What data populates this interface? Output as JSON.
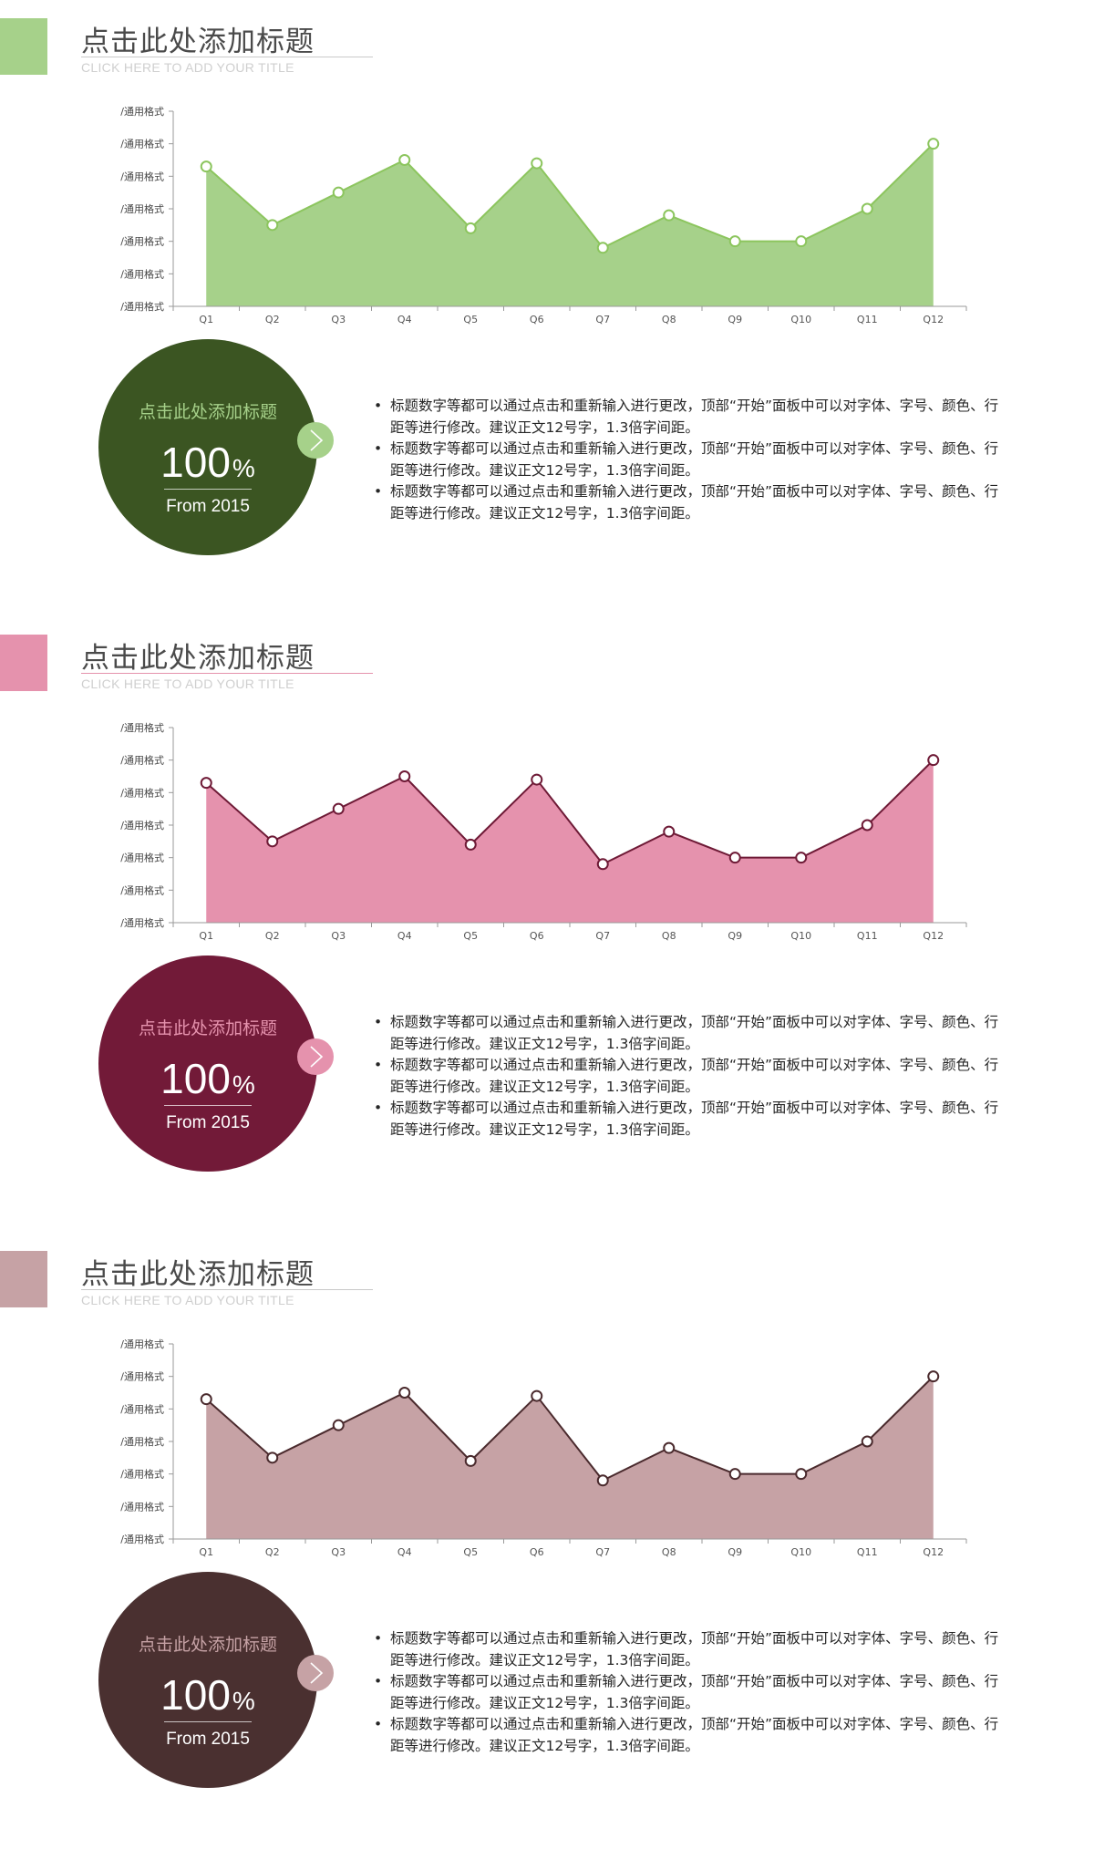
{
  "sections": [
    {
      "title": "点击此处添加标题",
      "subtitle": "CLICK HERE TO ADD YOUR TITLE",
      "circle": {
        "title": "点击此处添加标题",
        "big": "100",
        "pct": "%",
        "sub": "From 2015"
      },
      "bullets": [
        "标题数字等都可以通过点击和重新输入进行更改，顶部“开始”面板中可以对字体、字号、颜色、行距等进行修改。建议正文12号字，1.3倍字间距。",
        "标题数字等都可以通过点击和重新输入进行更改，顶部“开始”面板中可以对字体、字号、颜色、行距等进行修改。建议正文12号字，1.3倍字间距。",
        "标题数字等都可以通过点击和重新输入进行更改，顶部“开始”面板中可以对字体、字号、颜色、行距等进行修改。建议正文12号字，1.3倍字间距。"
      ],
      "colors": {
        "accent": "#a6d18a",
        "rule": "#c9c9c9",
        "fill": "#a6d18a",
        "line": "#8cc55e",
        "marker_fill": "#ffffff",
        "marker_stroke": "#8cc55e",
        "circle_bg": "#3b5522",
        "circle_title": "#a6d18a",
        "arrow_bg": "#a6d18a"
      },
      "icons": {
        "arrow": "chevron-right-icon"
      }
    },
    {
      "title": "点击此处添加标题",
      "subtitle": "CLICK HERE TO ADD YOUR TITLE",
      "circle": {
        "title": "点击此处添加标题",
        "big": "100",
        "pct": "%",
        "sub": "From 2015"
      },
      "bullets": [
        "标题数字等都可以通过点击和重新输入进行更改，顶部“开始”面板中可以对字体、字号、颜色、行距等进行修改。建议正文12号字，1.3倍字间距。",
        "标题数字等都可以通过点击和重新输入进行更改，顶部“开始”面板中可以对字体、字号、颜色、行距等进行修改。建议正文12号字，1.3倍字间距。",
        "标题数字等都可以通过点击和重新输入进行更改，顶部“开始”面板中可以对字体、字号、颜色、行距等进行修改。建议正文12号字，1.3倍字间距。"
      ],
      "colors": {
        "accent": "#e592ad",
        "rule": "#e592ad",
        "fill": "#e592ad",
        "line": "#6e1a36",
        "marker_fill": "#ffffff",
        "marker_stroke": "#6e1a36",
        "circle_bg": "#721a38",
        "circle_title": "#e592ad",
        "arrow_bg": "#e592ad"
      },
      "icons": {
        "arrow": "chevron-right-icon"
      }
    },
    {
      "title": "点击此处添加标题",
      "subtitle": "CLICK HERE TO ADD YOUR TITLE",
      "circle": {
        "title": "点击此处添加标题",
        "big": "100",
        "pct": "%",
        "sub": "From 2015"
      },
      "bullets": [
        "标题数字等都可以通过点击和重新输入进行更改，顶部“开始”面板中可以对字体、字号、颜色、行距等进行修改。建议正文12号字，1.3倍字间距。",
        "标题数字等都可以通过点击和重新输入进行更改，顶部“开始”面板中可以对字体、字号、颜色、行距等进行修改。建议正文12号字，1.3倍字间距。",
        "标题数字等都可以通过点击和重新输入进行更改，顶部“开始”面板中可以对字体、字号、颜色、行距等进行修改。建议正文12号字，1.3倍字间距。"
      ],
      "colors": {
        "accent": "#c6a2a5",
        "rule": "#c9c9c9",
        "fill": "#c6a2a5",
        "line": "#4a2a2d",
        "marker_fill": "#ffffff",
        "marker_stroke": "#4a2a2d",
        "circle_bg": "#4a3030",
        "circle_title": "#c6a2a5",
        "arrow_bg": "#c6a2a5"
      },
      "icons": {
        "arrow": "chevron-right-icon"
      }
    }
  ],
  "chart_data": [
    {
      "type": "area",
      "categories": [
        "Q1",
        "Q2",
        "Q3",
        "Q4",
        "Q5",
        "Q6",
        "Q7",
        "Q8",
        "Q9",
        "Q10",
        "Q11",
        "Q12"
      ],
      "series": [
        {
          "values": [
            4.3,
            2.5,
            3.5,
            4.5,
            2.4,
            4.4,
            1.8,
            2.8,
            2.0,
            2.0,
            3.0,
            5.0
          ]
        }
      ],
      "ytick_labels": [
        "/通用格式",
        "/通用格式",
        "/通用格式",
        "/通用格式",
        "/通用格式",
        "/通用格式",
        "/通用格式"
      ],
      "ylim": [
        0,
        6
      ],
      "grid": false,
      "markers": true
    },
    {
      "type": "area",
      "categories": [
        "Q1",
        "Q2",
        "Q3",
        "Q4",
        "Q5",
        "Q6",
        "Q7",
        "Q8",
        "Q9",
        "Q10",
        "Q11",
        "Q12"
      ],
      "series": [
        {
          "values": [
            4.3,
            2.5,
            3.5,
            4.5,
            2.4,
            4.4,
            1.8,
            2.8,
            2.0,
            2.0,
            3.0,
            5.0
          ]
        }
      ],
      "ytick_labels": [
        "/通用格式",
        "/通用格式",
        "/通用格式",
        "/通用格式",
        "/通用格式",
        "/通用格式",
        "/通用格式"
      ],
      "ylim": [
        0,
        6
      ],
      "grid": false,
      "markers": true
    },
    {
      "type": "area",
      "categories": [
        "Q1",
        "Q2",
        "Q3",
        "Q4",
        "Q5",
        "Q6",
        "Q7",
        "Q8",
        "Q9",
        "Q10",
        "Q11",
        "Q12"
      ],
      "series": [
        {
          "values": [
            4.3,
            2.5,
            3.5,
            4.5,
            2.4,
            4.4,
            1.8,
            2.8,
            2.0,
            2.0,
            3.0,
            5.0
          ]
        }
      ],
      "ytick_labels": [
        "/通用格式",
        "/通用格式",
        "/通用格式",
        "/通用格式",
        "/通用格式",
        "/通用格式",
        "/通用格式"
      ],
      "ylim": [
        0,
        6
      ],
      "grid": false,
      "markers": true
    }
  ]
}
